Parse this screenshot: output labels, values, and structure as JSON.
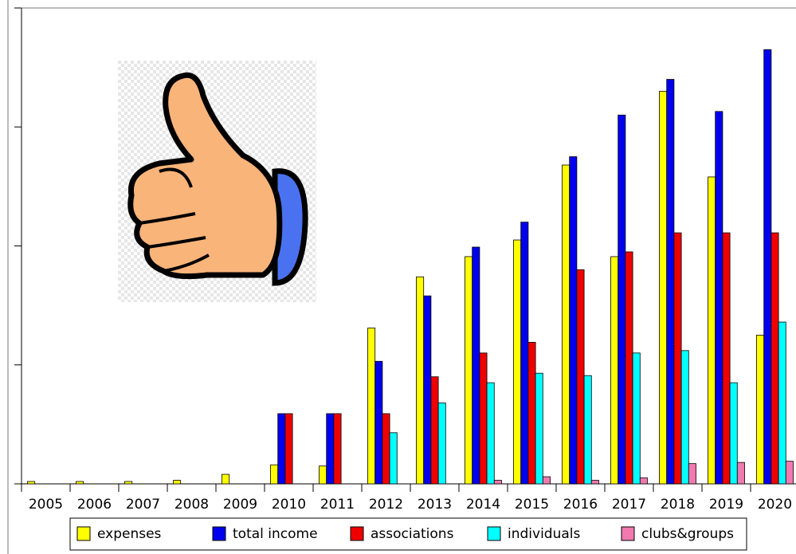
{
  "chart_data": {
    "type": "bar",
    "categories": [
      "2005",
      "2006",
      "2007",
      "2008",
      "2009",
      "2010",
      "2011",
      "2012",
      "2013",
      "2014",
      "2015",
      "2016",
      "2017",
      "2018",
      "2019",
      "2020"
    ],
    "series": [
      {
        "name": "expenses",
        "color": "#ffff00",
        "values": [
          0.02,
          0.02,
          0.02,
          0.03,
          0.08,
          0.16,
          0.15,
          1.31,
          1.74,
          1.91,
          2.05,
          2.68,
          1.91,
          3.3,
          2.58,
          1.25
        ]
      },
      {
        "name": "total income",
        "color": "#0000ee",
        "values": [
          0,
          0,
          0,
          0,
          0,
          0.59,
          0.59,
          1.03,
          1.58,
          1.99,
          2.2,
          2.75,
          3.1,
          3.4,
          3.13,
          3.65
        ]
      },
      {
        "name": "associations",
        "color": "#ee0000",
        "values": [
          0,
          0,
          0,
          0,
          0,
          0.59,
          0.59,
          0.59,
          0.9,
          1.1,
          1.19,
          1.8,
          1.95,
          2.11,
          2.11,
          2.11
        ]
      },
      {
        "name": "individuals",
        "color": "#00ffff",
        "values": [
          0,
          0,
          0,
          0,
          0,
          0,
          0,
          0.43,
          0.68,
          0.85,
          0.93,
          0.91,
          1.1,
          1.12,
          0.85,
          1.36
        ]
      },
      {
        "name": "clubs&groups",
        "color": "#f07ab0",
        "values": [
          0,
          0,
          0,
          0,
          0,
          0,
          0,
          0,
          0,
          0.03,
          0.06,
          0.03,
          0.05,
          0.17,
          0.18,
          0.19
        ]
      }
    ],
    "ylim": [
      0,
      4
    ],
    "yticks": [
      0,
      1,
      2,
      3,
      4
    ],
    "legend": "bottom"
  }
}
